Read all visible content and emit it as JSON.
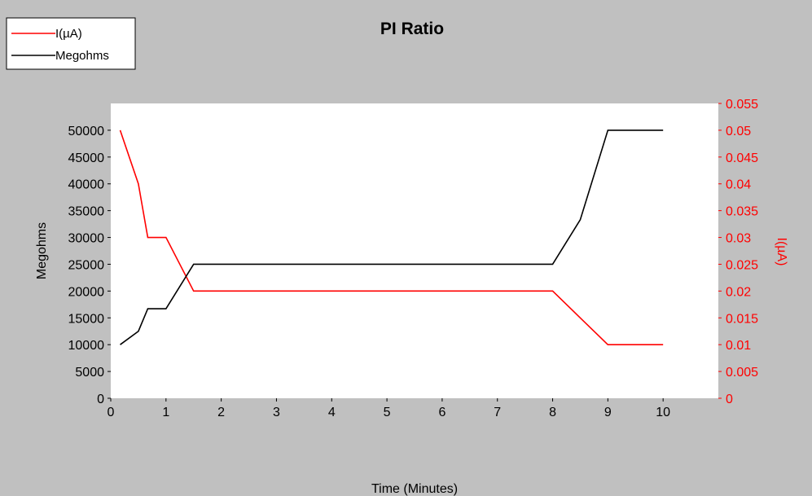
{
  "chart_data": {
    "type": "line",
    "title": "PI Ratio",
    "xlabel": "Time (Minutes)",
    "ylabel_left": "Megohms",
    "ylabel_right": "I(µA)",
    "xlim": [
      0,
      11
    ],
    "ylim_left": [
      0,
      55000
    ],
    "ylim_right": [
      0,
      0.055
    ],
    "x_ticks": [
      0,
      1,
      2,
      3,
      4,
      5,
      6,
      7,
      8,
      9,
      10
    ],
    "y_ticks_left": [
      0,
      5000,
      10000,
      15000,
      20000,
      25000,
      30000,
      35000,
      40000,
      45000,
      50000
    ],
    "y_ticks_right": [
      0,
      0.005,
      0.01,
      0.015,
      0.02,
      0.025,
      0.03,
      0.035,
      0.04,
      0.045,
      0.05,
      0.055
    ],
    "grid": false,
    "legend_position": "top-left",
    "series": [
      {
        "name": "I(µA)",
        "axis": "right",
        "color": "#ff0000",
        "x": [
          0.17,
          0.5,
          0.67,
          1.0,
          1.5,
          8.0,
          8.5,
          9.0,
          10.0
        ],
        "y": [
          0.05,
          0.04,
          0.03,
          0.03,
          0.02,
          0.02,
          0.015,
          0.01,
          0.01
        ]
      },
      {
        "name": "Megohms",
        "axis": "left",
        "color": "#000000",
        "x": [
          0.17,
          0.5,
          0.67,
          1.0,
          1.5,
          8.0,
          8.5,
          9.0,
          10.0
        ],
        "y": [
          10000,
          12500,
          16700,
          16700,
          25000,
          25000,
          33300,
          50000,
          50000
        ]
      }
    ]
  }
}
